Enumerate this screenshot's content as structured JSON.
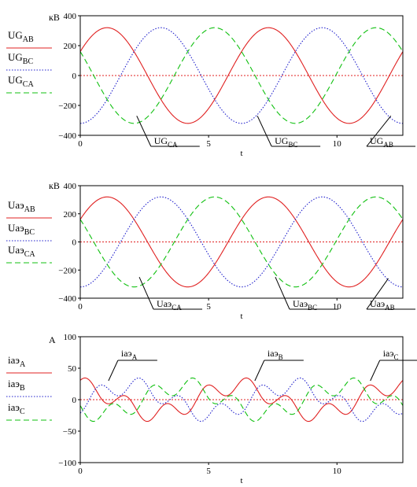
{
  "chart_data": [
    {
      "type": "line",
      "title": "",
      "ylabel": "кВ",
      "xlabel": "t",
      "xlim": [
        0,
        12.566
      ],
      "ylim": [
        -400,
        400
      ],
      "x_ticks": [
        0,
        5,
        10
      ],
      "y_ticks": [
        400,
        200,
        0,
        -200,
        -400
      ],
      "legend_position": "left",
      "legend": [
        {
          "name": "UG",
          "sub": "AB"
        },
        {
          "name": "UG",
          "sub": "BC"
        },
        {
          "name": "UG",
          "sub": "CA"
        }
      ],
      "series": [
        {
          "name": "UG AB",
          "color": "#e02020",
          "dash": "solid",
          "amplitude": 320,
          "phase_deg": 30
        },
        {
          "name": "UG BC",
          "color": "#2020cc",
          "dash": "dotted",
          "amplitude": 320,
          "phase_deg": -90
        },
        {
          "name": "UG CA",
          "color": "#10c010",
          "dash": "dashed",
          "amplitude": 320,
          "phase_deg": 150
        }
      ],
      "annotations": [
        {
          "name": "UG",
          "sub": "CA",
          "x": 2.2,
          "y": -270
        },
        {
          "name": "UG",
          "sub": "BC",
          "x": 6.9,
          "y": -270
        },
        {
          "name": "UG",
          "sub": "AB",
          "x": 12.1,
          "y": -270
        }
      ]
    },
    {
      "type": "line",
      "title": "",
      "ylabel": "кВ",
      "xlabel": "t",
      "xlim": [
        0,
        12.566
      ],
      "ylim": [
        -400,
        400
      ],
      "x_ticks": [
        0,
        5,
        10
      ],
      "y_ticks": [
        400,
        200,
        0,
        -200,
        -400
      ],
      "legend_position": "left",
      "legend": [
        {
          "name": "Uaэ",
          "sub": "AB"
        },
        {
          "name": "Uaэ",
          "sub": "BC"
        },
        {
          "name": "Uaэ",
          "sub": "CA"
        }
      ],
      "series": [
        {
          "name": "Uaэ AB",
          "color": "#e02020",
          "dash": "solid",
          "amplitude": 320,
          "phase_deg": 30
        },
        {
          "name": "Uaэ BC",
          "color": "#2020cc",
          "dash": "dotted",
          "amplitude": 320,
          "phase_deg": -90
        },
        {
          "name": "Uaэ CA",
          "color": "#10c010",
          "dash": "dashed",
          "amplitude": 320,
          "phase_deg": 150
        }
      ],
      "annotations": [
        {
          "name": "Uaэ",
          "sub": "CA",
          "x": 2.3,
          "y": -250
        },
        {
          "name": "Uaэ",
          "sub": "BC",
          "x": 7.6,
          "y": -250
        },
        {
          "name": "Uaэ",
          "sub": "AB",
          "x": 12.0,
          "y": -260
        }
      ]
    },
    {
      "type": "line",
      "title": "",
      "ylabel": "A",
      "xlabel": "t",
      "xlim": [
        0,
        12.566
      ],
      "ylim": [
        -100,
        100
      ],
      "x_ticks": [
        0,
        5,
        10
      ],
      "y_ticks": [
        100,
        50,
        0,
        -50,
        -100
      ],
      "legend_position": "left",
      "legend": [
        {
          "name": "iaэ",
          "sub": "A"
        },
        {
          "name": "iaэ",
          "sub": "B"
        },
        {
          "name": "iaэ",
          "sub": "C"
        }
      ],
      "series": [
        {
          "name": "iaэ A",
          "color": "#e02020",
          "dash": "solid",
          "amplitude": 22,
          "phase_deg": 100,
          "harmonic": 4,
          "harmonic_amplitude": 14
        },
        {
          "name": "iaэ B",
          "color": "#2020cc",
          "dash": "dotted",
          "amplitude": 22,
          "phase_deg": -20,
          "harmonic": 4,
          "harmonic_amplitude": 14
        },
        {
          "name": "iaэ C",
          "color": "#10c010",
          "dash": "dashed",
          "amplitude": 22,
          "phase_deg": 220,
          "harmonic": 4,
          "harmonic_amplitude": 14
        }
      ],
      "annotations": [
        {
          "name": "iaэ",
          "sub": "A",
          "x": 1.1,
          "y": 30
        },
        {
          "name": "iaэ",
          "sub": "B",
          "x": 6.8,
          "y": 30
        },
        {
          "name": "iaэ",
          "sub": "C",
          "x": 11.3,
          "y": 30
        }
      ]
    }
  ]
}
